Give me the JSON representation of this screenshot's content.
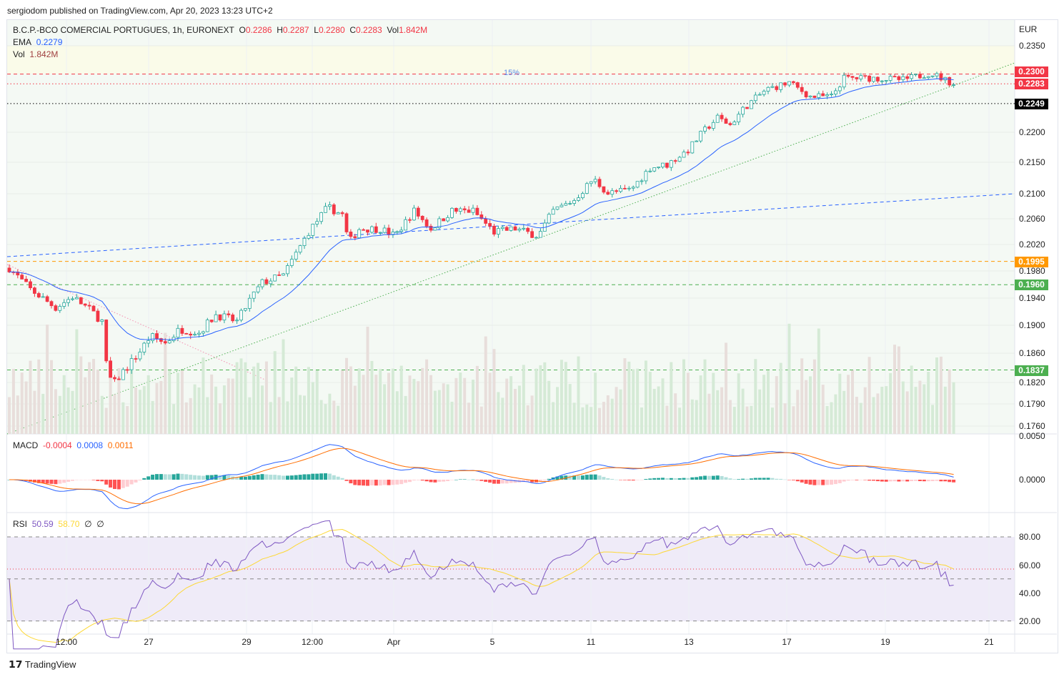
{
  "published": "sergiodom published on TradingView.com, Apr 20, 2023 13:23 UTC+2",
  "legend": {
    "symbol": "B.C.P.-BCO COMERCIAL PORTUGUES, 1h, EURONEXT",
    "o_label": "O",
    "o": "0.2286",
    "h_label": "H",
    "h": "0.2287",
    "l_label": "L",
    "l": "0.2280",
    "c_label": "C",
    "c": "0.2283",
    "vol_label": "Vol",
    "vol": "1.842M",
    "ema_label": "EMA",
    "ema": "0.2279",
    "vol2_label": "Vol",
    "vol2": "1.842M"
  },
  "macd_legend": {
    "label": "MACD",
    "hist": "-0.0004",
    "macd": "0.0008",
    "signal": "0.0011"
  },
  "rsi_legend": {
    "label": "RSI",
    "rsi": "50.59",
    "ma": "58.70",
    "n1": "∅",
    "n2": "∅"
  },
  "currency": "EUR",
  "price_ticks": [
    "0.2350",
    "0.2200",
    "0.2150",
    "0.2100",
    "0.2060",
    "0.2020",
    "0.1980",
    "0.1940",
    "0.1900",
    "0.1860",
    "0.1820",
    "0.1790",
    "0.1760"
  ],
  "price_tags": [
    {
      "v": "0.2300",
      "color": "#f23645"
    },
    {
      "v": "0.2283",
      "color": "#f23645"
    },
    {
      "v": "0.2249",
      "color": "#000000"
    },
    {
      "v": "0.1995",
      "color": "#ff9800"
    },
    {
      "v": "0.1960",
      "color": "#4caf50"
    },
    {
      "v": "0.1837",
      "color": "#4caf50"
    }
  ],
  "macd_ticks": [
    "0.0050",
    "0.0000"
  ],
  "rsi_ticks": [
    "80.00",
    "60.00",
    "40.00",
    "20.00"
  ],
  "time_labels": [
    "12:00",
    "27",
    "29",
    "12:00",
    "Apr",
    "5",
    "11",
    "13",
    "17",
    "19",
    "21"
  ],
  "annotation": "15%",
  "logo": "TradingView",
  "chart_data": {
    "type": "candlestick",
    "scale": "log",
    "ylim": [
      0.1755,
      0.2365
    ],
    "price_keypoints": [
      [
        0,
        0.1985
      ],
      [
        5,
        0.1953
      ],
      [
        11,
        0.1926
      ],
      [
        15,
        0.1942
      ],
      [
        19.5,
        0.1921
      ],
      [
        22,
        0.1906
      ],
      [
        23,
        0.1845
      ],
      [
        24.5,
        0.1815
      ],
      [
        27,
        0.1835
      ],
      [
        30.5,
        0.1859
      ],
      [
        33.5,
        0.1885
      ],
      [
        37,
        0.1875
      ],
      [
        40.5,
        0.1895
      ],
      [
        45,
        0.189
      ],
      [
        49,
        0.1916
      ],
      [
        54,
        0.1906
      ],
      [
        57,
        0.1937
      ],
      [
        60,
        0.1963
      ],
      [
        65,
        0.1974
      ],
      [
        68.5,
        0.2012
      ],
      [
        71,
        0.204
      ],
      [
        75.5,
        0.2079
      ],
      [
        79,
        0.2067
      ],
      [
        80.5,
        0.2023
      ],
      [
        83,
        0.2045
      ],
      [
        88,
        0.2045
      ],
      [
        91.5,
        0.2034
      ],
      [
        96,
        0.2073
      ],
      [
        100,
        0.2045
      ],
      [
        105,
        0.2073
      ],
      [
        110,
        0.2073
      ],
      [
        115,
        0.204
      ],
      [
        120,
        0.2045
      ],
      [
        125.5,
        0.2034
      ],
      [
        129,
        0.2073
      ],
      [
        134,
        0.209
      ],
      [
        138.5,
        0.2124
      ],
      [
        142,
        0.2101
      ],
      [
        147.5,
        0.2107
      ],
      [
        152,
        0.2142
      ],
      [
        156,
        0.2147
      ],
      [
        161,
        0.2171
      ],
      [
        164.5,
        0.2201
      ],
      [
        168,
        0.2225
      ],
      [
        171,
        0.2213
      ],
      [
        174.5,
        0.2243
      ],
      [
        179.5,
        0.2273
      ],
      [
        185,
        0.2285
      ],
      [
        190,
        0.2261
      ],
      [
        195,
        0.2261
      ],
      [
        198,
        0.2293
      ],
      [
        205,
        0.2293
      ],
      [
        212,
        0.229
      ],
      [
        218.5,
        0.2302
      ],
      [
        224,
        0.2283
      ]
    ],
    "bars": 225,
    "ema_period": 20,
    "levels": [
      {
        "price": 0.23,
        "style": "dashed",
        "color": "#f23645"
      },
      {
        "price": 0.2283,
        "style": "dotted",
        "color": "#f23645"
      },
      {
        "price": 0.2249,
        "style": "dotted",
        "color": "#000000"
      },
      {
        "price": 0.1995,
        "style": "dashed",
        "color": "#ff9800"
      },
      {
        "price": 0.196,
        "style": "dashed",
        "color": "#4caf50"
      },
      {
        "price": 0.1837,
        "style": "dashed",
        "color": "#4caf50"
      }
    ],
    "macd": {
      "fast": 12,
      "slow": 26,
      "signal": 9,
      "ylim": [
        -0.0035,
        0.005
      ]
    },
    "rsi": {
      "period": 14,
      "ma": 14,
      "bands": [
        80,
        50,
        20
      ],
      "ylim": [
        15,
        95
      ]
    },
    "colors": {
      "up": "#26a69a",
      "down": "#f23645",
      "ema": "#2962ff",
      "macd": "#2962ff",
      "signal": "#ff6d00",
      "rsi": "#7e57c2",
      "rsi_ma": "#fdd835"
    }
  }
}
